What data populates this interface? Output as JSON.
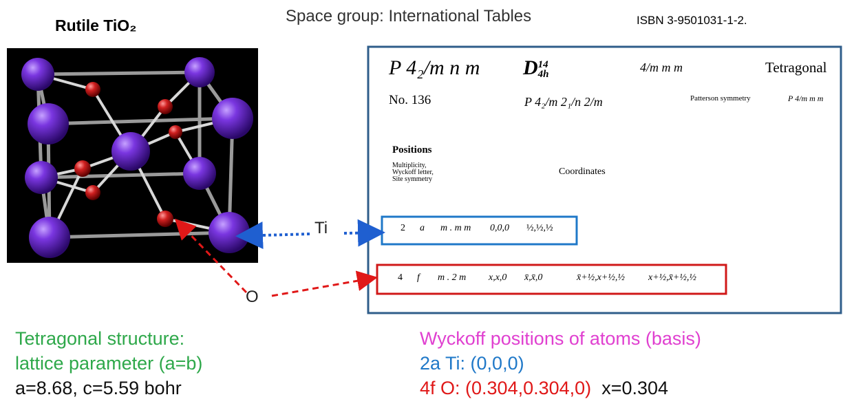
{
  "header": {
    "structure_title": "Rutile TiO₂",
    "space_group": "Space group:  International Tables",
    "isbn": "ISBN 3-9501031-1-2."
  },
  "table": {
    "hm_symbol": "P 4₂/m n m",
    "schoenflies": "D",
    "schoenflies_sup": "14",
    "schoenflies_sub": "4h",
    "point_group": "4/m m m",
    "system": "Tetragonal",
    "number": "No. 136",
    "full_symbol": "P 4₂/m 2₁/n 2/m",
    "patterson_label": "Patterson symmetry",
    "patterson_symbol": "P 4/m m m",
    "positions": "Positions",
    "columns": [
      "Multiplicity,",
      "Wyckoff letter,",
      "Site symmetry"
    ],
    "coordinates": "Coordinates",
    "rows": [
      [
        "2",
        "a",
        "m . m m",
        "0,0,0",
        "½,½,½"
      ],
      [
        "4",
        "f",
        "m . 2 m",
        "x,x,0",
        "x̄,x̄,0",
        "x̄+½,x+½,½",
        "x+½,x̄+½,½"
      ]
    ]
  },
  "labels": {
    "ti": "Ti",
    "o": "O"
  },
  "notes": {
    "left": [
      "Tetragonal structure:",
      "lattice parameter (a=b)",
      "a=8.68, c=5.59 bohr"
    ],
    "right_title": "Wyckoff positions of atoms (basis)",
    "ti_position": "2a Ti: (0,0,0)",
    "o_position": "4f  O: (0.304,0.304,0)",
    "o_param": "x=0.304"
  }
}
